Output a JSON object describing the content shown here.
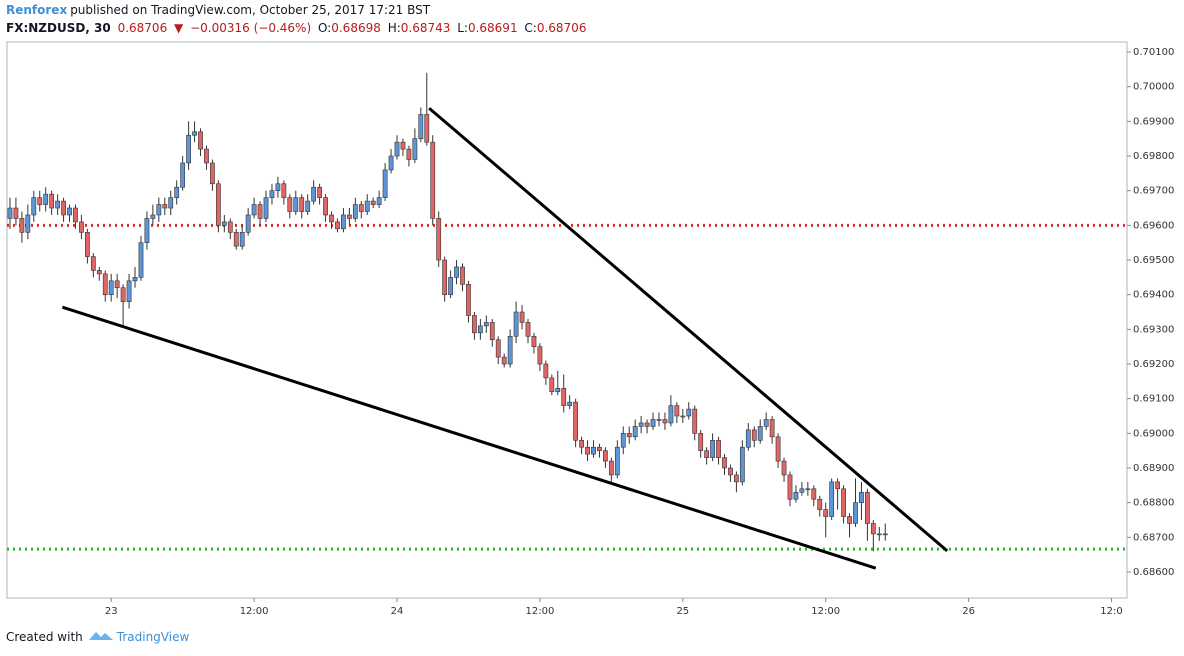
{
  "header": {
    "author": "Renforex",
    "published": "published on TradingView.com, October 25, 2017 17:21 BST",
    "symbol": "FX:NZDUSD, 30",
    "last": "0.68706",
    "arrow": "▼",
    "change": "−0.00316 (−0.46%)",
    "o_label": "O:",
    "o": "0.68698",
    "h_label": "H:",
    "h": "0.68743",
    "l_label": "L:",
    "l": "0.68691",
    "c_label": "C:",
    "c": "0.68706"
  },
  "footer": {
    "created": "Created with",
    "brand": "TradingView"
  },
  "chart_data": {
    "type": "candlestick",
    "up_color": "#5d95d6",
    "down_color": "#e06666",
    "xlim": [
      -8.75,
      85.3
    ],
    "xticks": [
      {
        "value": 0,
        "label": "23"
      },
      {
        "value": 12,
        "label": "12:00"
      },
      {
        "value": 24,
        "label": "24"
      },
      {
        "value": 36,
        "label": "12:00"
      },
      {
        "value": 48,
        "label": "25"
      },
      {
        "value": 60,
        "label": "12:00"
      },
      {
        "value": 72,
        "label": "26"
      },
      {
        "value": 84,
        "label": "12:0"
      }
    ],
    "ylim": [
      0.68525,
      0.70129
    ],
    "yticks": [
      {
        "value": 0.686,
        "label": "0.68600"
      },
      {
        "value": 0.687,
        "label": "0.68700"
      },
      {
        "value": 0.688,
        "label": "0.68800"
      },
      {
        "value": 0.689,
        "label": "0.68900"
      },
      {
        "value": 0.69,
        "label": "0.69000"
      },
      {
        "value": 0.691,
        "label": "0.69100"
      },
      {
        "value": 0.692,
        "label": "0.69200"
      },
      {
        "value": 0.693,
        "label": "0.69300"
      },
      {
        "value": 0.694,
        "label": "0.69400"
      },
      {
        "value": 0.695,
        "label": "0.69500"
      },
      {
        "value": 0.696,
        "label": "0.69600"
      },
      {
        "value": 0.697,
        "label": "0.69700"
      },
      {
        "value": 0.698,
        "label": "0.69800"
      },
      {
        "value": 0.699,
        "label": "0.69900"
      },
      {
        "value": 0.7,
        "label": "0.70000"
      },
      {
        "value": 0.701,
        "label": "0.70100"
      }
    ],
    "hlines": [
      {
        "value": 0.696,
        "color": "#d32f2f"
      },
      {
        "value": 0.68666,
        "color": "#2eb82e"
      }
    ],
    "trendlines": [
      {
        "x": [
          26.7,
          70.2
        ],
        "y": [
          0.69938,
          0.68661
        ]
      },
      {
        "x": [
          -4.1,
          64.2
        ],
        "y": [
          0.69364,
          0.68611
        ]
      }
    ],
    "x": [
      -8.5,
      -8,
      -7.5,
      -7,
      -6.5,
      -6,
      -5.5,
      -5,
      -4.5,
      -4,
      -3.5,
      -3,
      -2.5,
      -2,
      -1.5,
      -1,
      -0.5,
      0,
      0.5,
      1,
      1.5,
      2,
      2.5,
      3,
      3.5,
      4,
      4.5,
      5,
      5.5,
      6,
      6.5,
      7,
      7.5,
      8,
      8.5,
      9,
      9.5,
      10,
      10.5,
      11,
      11.5,
      12,
      12.5,
      13,
      13.5,
      14,
      14.5,
      15,
      15.5,
      16,
      16.5,
      17,
      17.5,
      18,
      18.5,
      19,
      19.5,
      20,
      20.5,
      21,
      21.5,
      22,
      22.5,
      23,
      23.5,
      24,
      24.5,
      25,
      25.5,
      26,
      26.5,
      27,
      27.5,
      28,
      28.5,
      29,
      29.5,
      30,
      30.5,
      31,
      31.5,
      32,
      32.5,
      33,
      33.5,
      34,
      34.5,
      35,
      35.5,
      36,
      36.5,
      37,
      37.5,
      38,
      38.5,
      39,
      39.5,
      40,
      40.5,
      41,
      41.5,
      42,
      42.5,
      43,
      43.5,
      44,
      44.5,
      45,
      45.5,
      46,
      46.5,
      47,
      47.5,
      48,
      48.5,
      49,
      49.5,
      50,
      50.5,
      51,
      51.5,
      52,
      52.5,
      53,
      53.5,
      54,
      54.5,
      55,
      55.5,
      56,
      56.5,
      57,
      57.5,
      58,
      58.5,
      59,
      59.5,
      60,
      60.5,
      61,
      61.5,
      62,
      62.5,
      63,
      63.5,
      64,
      64.5,
      65
    ],
    "open": [
      0.6962,
      0.6965,
      0.6962,
      0.6958,
      0.6963,
      0.6968,
      0.6966,
      0.6969,
      0.6965,
      0.6967,
      0.6963,
      0.6965,
      0.6961,
      0.6958,
      0.6951,
      0.6947,
      0.6946,
      0.694,
      0.6944,
      0.6942,
      0.6938,
      0.6944,
      0.6945,
      0.6955,
      0.6962,
      0.6963,
      0.6966,
      0.6965,
      0.6968,
      0.6971,
      0.6978,
      0.6986,
      0.6987,
      0.6982,
      0.6978,
      0.6972,
      0.696,
      0.6961,
      0.6958,
      0.6954,
      0.6958,
      0.6963,
      0.6966,
      0.6962,
      0.6968,
      0.697,
      0.6972,
      0.6968,
      0.6964,
      0.6968,
      0.6964,
      0.6967,
      0.6971,
      0.6968,
      0.6963,
      0.6961,
      0.6959,
      0.6963,
      0.6962,
      0.6966,
      0.6964,
      0.6967,
      0.6966,
      0.6968,
      0.6976,
      0.698,
      0.6984,
      0.6982,
      0.6979,
      0.6985,
      0.6992,
      0.6984,
      0.6962,
      0.695,
      0.694,
      0.6945,
      0.6948,
      0.6943,
      0.6934,
      0.6929,
      0.6931,
      0.6932,
      0.6927,
      0.6922,
      0.692,
      0.6928,
      0.6935,
      0.6932,
      0.6928,
      0.6925,
      0.692,
      0.6916,
      0.6912,
      0.6913,
      0.6908,
      0.6909,
      0.6898,
      0.6896,
      0.6894,
      0.6896,
      0.6895,
      0.6892,
      0.6888,
      0.6896,
      0.69,
      0.6899,
      0.6902,
      0.6903,
      0.6902,
      0.6904,
      0.6904,
      0.6903,
      0.6908,
      0.6905,
      0.6905,
      0.6907,
      0.69,
      0.6895,
      0.6893,
      0.6898,
      0.6893,
      0.689,
      0.6888,
      0.6886,
      0.6896,
      0.6901,
      0.6898,
      0.6902,
      0.6904,
      0.6899,
      0.6892,
      0.6888,
      0.6881,
      0.6883,
      0.6884,
      0.6884,
      0.6881,
      0.6878,
      0.6876,
      0.6886,
      0.6884,
      0.6876,
      0.6874,
      0.688,
      0.6883,
      0.6874,
      0.6871,
      0.6871
    ],
    "high": [
      0.6968,
      0.6968,
      0.6964,
      0.6966,
      0.697,
      0.697,
      0.6971,
      0.697,
      0.6969,
      0.6968,
      0.6966,
      0.6966,
      0.6963,
      0.6959,
      0.6952,
      0.6948,
      0.6947,
      0.6946,
      0.6946,
      0.6943,
      0.6946,
      0.6948,
      0.6957,
      0.6964,
      0.6966,
      0.6968,
      0.6968,
      0.697,
      0.6973,
      0.698,
      0.699,
      0.699,
      0.6988,
      0.6983,
      0.6979,
      0.6973,
      0.6963,
      0.6962,
      0.6959,
      0.696,
      0.6965,
      0.6968,
      0.6967,
      0.697,
      0.6972,
      0.6974,
      0.6973,
      0.6969,
      0.697,
      0.6969,
      0.6969,
      0.6973,
      0.6972,
      0.6969,
      0.6964,
      0.6962,
      0.6965,
      0.6965,
      0.6968,
      0.6967,
      0.6969,
      0.6968,
      0.697,
      0.6978,
      0.6982,
      0.6986,
      0.6985,
      0.6983,
      0.6988,
      0.6994,
      0.7004,
      0.6986,
      0.6964,
      0.6951,
      0.6947,
      0.695,
      0.6949,
      0.6944,
      0.6935,
      0.6933,
      0.6934,
      0.6933,
      0.6928,
      0.6923,
      0.693,
      0.6938,
      0.6937,
      0.6933,
      0.6929,
      0.6926,
      0.6921,
      0.6917,
      0.6918,
      0.6917,
      0.6911,
      0.691,
      0.6899,
      0.6898,
      0.6898,
      0.6897,
      0.6896,
      0.6893,
      0.6898,
      0.6902,
      0.6902,
      0.6904,
      0.6905,
      0.6904,
      0.6906,
      0.6906,
      0.6906,
      0.6911,
      0.6909,
      0.6907,
      0.6909,
      0.6908,
      0.6901,
      0.6896,
      0.69,
      0.6899,
      0.6894,
      0.6891,
      0.6889,
      0.6898,
      0.6903,
      0.6902,
      0.6904,
      0.6906,
      0.6905,
      0.69,
      0.6893,
      0.6889,
      0.6885,
      0.6886,
      0.6886,
      0.6885,
      0.6882,
      0.688,
      0.6887,
      0.6887,
      0.6885,
      0.6877,
      0.6887,
      0.6886,
      0.6884,
      0.6875,
      0.6873,
      0.6874
    ],
    "low": [
      0.6959,
      0.696,
      0.6955,
      0.6956,
      0.6961,
      0.6964,
      0.6964,
      0.6963,
      0.6963,
      0.6961,
      0.6961,
      0.6959,
      0.6956,
      0.6949,
      0.6945,
      0.6944,
      0.6938,
      0.6938,
      0.6939,
      0.6931,
      0.6936,
      0.6942,
      0.6944,
      0.6953,
      0.696,
      0.6961,
      0.6963,
      0.6963,
      0.6966,
      0.697,
      0.6976,
      0.6984,
      0.698,
      0.6976,
      0.697,
      0.6958,
      0.6958,
      0.6956,
      0.6953,
      0.6953,
      0.6957,
      0.6962,
      0.696,
      0.6961,
      0.6966,
      0.6968,
      0.6966,
      0.6962,
      0.6963,
      0.6962,
      0.6963,
      0.6966,
      0.6966,
      0.6961,
      0.6959,
      0.6958,
      0.6958,
      0.696,
      0.6961,
      0.6962,
      0.6963,
      0.6965,
      0.6965,
      0.6967,
      0.6975,
      0.6979,
      0.698,
      0.6977,
      0.6978,
      0.6984,
      0.6983,
      0.696,
      0.6948,
      0.6938,
      0.6939,
      0.6943,
      0.6941,
      0.6932,
      0.6927,
      0.6927,
      0.6929,
      0.6925,
      0.692,
      0.6919,
      0.6919,
      0.6926,
      0.693,
      0.6926,
      0.6923,
      0.6918,
      0.6914,
      0.6911,
      0.6911,
      0.6906,
      0.6907,
      0.6896,
      0.6894,
      0.6892,
      0.6893,
      0.6893,
      0.689,
      0.6886,
      0.6887,
      0.6894,
      0.6897,
      0.6898,
      0.69,
      0.69,
      0.6901,
      0.6902,
      0.6901,
      0.6902,
      0.6903,
      0.6903,
      0.6904,
      0.6898,
      0.6893,
      0.6891,
      0.6892,
      0.6891,
      0.6888,
      0.6886,
      0.6883,
      0.6885,
      0.6895,
      0.6896,
      0.6897,
      0.6901,
      0.6897,
      0.689,
      0.6886,
      0.6879,
      0.688,
      0.6882,
      0.6882,
      0.6879,
      0.6876,
      0.687,
      0.6875,
      0.6878,
      0.6874,
      0.687,
      0.6873,
      0.6875,
      0.6869,
      0.6866,
      0.6869,
      0.6869
    ],
    "close": [
      0.6965,
      0.6962,
      0.6958,
      0.6963,
      0.6968,
      0.6966,
      0.6969,
      0.6965,
      0.6967,
      0.6963,
      0.6965,
      0.6961,
      0.6958,
      0.6951,
      0.6947,
      0.6946,
      0.694,
      0.6944,
      0.6942,
      0.6938,
      0.6944,
      0.6945,
      0.6955,
      0.6962,
      0.6963,
      0.6966,
      0.6965,
      0.6968,
      0.6971,
      0.6978,
      0.6986,
      0.6987,
      0.6982,
      0.6978,
      0.6972,
      0.696,
      0.6961,
      0.6958,
      0.6954,
      0.6958,
      0.6963,
      0.6966,
      0.6962,
      0.6968,
      0.697,
      0.6972,
      0.6968,
      0.6964,
      0.6968,
      0.6964,
      0.6967,
      0.6971,
      0.6968,
      0.6963,
      0.6961,
      0.6959,
      0.6963,
      0.6962,
      0.6966,
      0.6964,
      0.6967,
      0.6966,
      0.6968,
      0.6976,
      0.698,
      0.6984,
      0.6982,
      0.6979,
      0.6985,
      0.6992,
      0.6984,
      0.6962,
      0.695,
      0.694,
      0.6945,
      0.6948,
      0.6943,
      0.6934,
      0.6929,
      0.6931,
      0.6932,
      0.6927,
      0.6922,
      0.692,
      0.6928,
      0.6935,
      0.6932,
      0.6928,
      0.6925,
      0.692,
      0.6916,
      0.6912,
      0.6913,
      0.6908,
      0.6909,
      0.6898,
      0.6896,
      0.6894,
      0.6896,
      0.6895,
      0.6892,
      0.6888,
      0.6896,
      0.69,
      0.6899,
      0.6902,
      0.6903,
      0.6902,
      0.6904,
      0.6904,
      0.6903,
      0.6908,
      0.6905,
      0.6905,
      0.6907,
      0.69,
      0.6895,
      0.6893,
      0.6898,
      0.6893,
      0.689,
      0.6888,
      0.6886,
      0.6896,
      0.6901,
      0.6898,
      0.6902,
      0.6904,
      0.6899,
      0.6892,
      0.6888,
      0.6881,
      0.6883,
      0.6884,
      0.6884,
      0.6881,
      0.6878,
      0.6876,
      0.6886,
      0.6884,
      0.6876,
      0.6874,
      0.688,
      0.6883,
      0.6874,
      0.6871,
      0.6871,
      0.6871
    ]
  }
}
